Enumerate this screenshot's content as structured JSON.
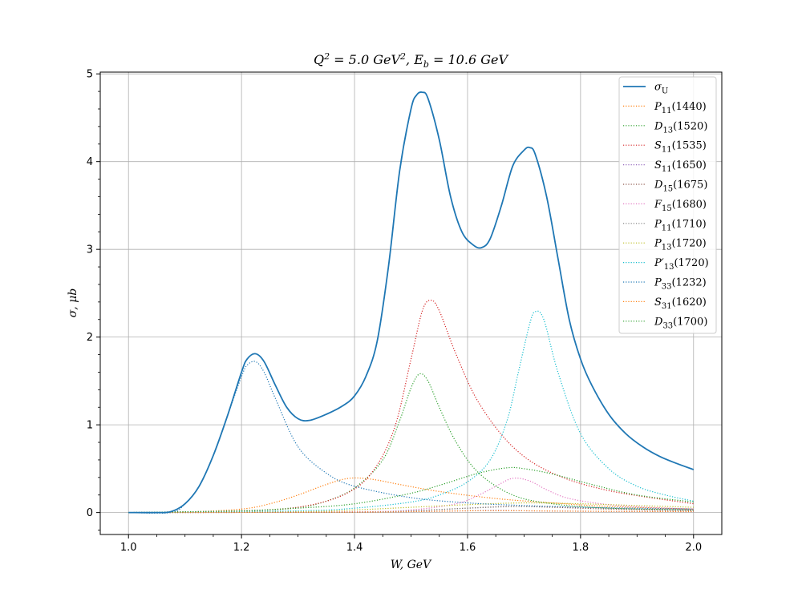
{
  "chart_data": {
    "type": "line",
    "title": "Q² = 5.0 GeV², E_b = 10.6 GeV",
    "title_parts": {
      "q": "Q",
      "q_sup": "2",
      "q_value": " = 5.0 GeV",
      "gev_sup": "2",
      "sep": ",  ",
      "eb": "E",
      "eb_sub": "b",
      "eb_value": " = 10.6 GeV"
    },
    "xlabel": "W, GeV",
    "ylabel": "σ, μb",
    "xlim": [
      0.95,
      2.05
    ],
    "ylim": [
      -0.25,
      5.02
    ],
    "x_ticks": [
      1.0,
      1.2,
      1.4,
      1.6,
      1.8,
      2.0
    ],
    "x_tick_labels": [
      "1.0",
      "1.2",
      "1.4",
      "1.6",
      "1.8",
      "2.0"
    ],
    "y_ticks": [
      0,
      1,
      2,
      3,
      4,
      5
    ],
    "y_tick_labels": [
      "0",
      "1",
      "2",
      "3",
      "4",
      "5"
    ],
    "grid": true,
    "legend_position": "top-right",
    "series": [
      {
        "name": "σ_U",
        "label_main": "σ",
        "label_sub": "U",
        "label_tail": "",
        "color": "#1f77b4",
        "style": "solid",
        "x": [
          1.0,
          1.05,
          1.075,
          1.1,
          1.125,
          1.15,
          1.175,
          1.2,
          1.21,
          1.225,
          1.24,
          1.26,
          1.28,
          1.3,
          1.32,
          1.35,
          1.38,
          1.4,
          1.42,
          1.44,
          1.46,
          1.48,
          1.5,
          1.51,
          1.52,
          1.53,
          1.55,
          1.57,
          1.59,
          1.61,
          1.625,
          1.64,
          1.66,
          1.68,
          1.7,
          1.71,
          1.72,
          1.74,
          1.76,
          1.78,
          1.8,
          1.82,
          1.85,
          1.88,
          1.91,
          1.94,
          1.97,
          2.0
        ],
        "y": [
          0.0,
          0.0,
          0.01,
          0.1,
          0.3,
          0.65,
          1.1,
          1.6,
          1.75,
          1.81,
          1.72,
          1.45,
          1.2,
          1.07,
          1.05,
          1.12,
          1.22,
          1.33,
          1.55,
          1.95,
          2.8,
          3.9,
          4.6,
          4.76,
          4.79,
          4.72,
          4.25,
          3.6,
          3.2,
          3.05,
          3.02,
          3.12,
          3.5,
          3.95,
          4.13,
          4.16,
          4.08,
          3.6,
          2.9,
          2.2,
          1.75,
          1.45,
          1.12,
          0.9,
          0.75,
          0.64,
          0.56,
          0.49
        ]
      },
      {
        "name": "P_11(1440)",
        "label_main": "P",
        "label_sub": "11",
        "label_tail": "(1440)",
        "color": "#ff7f0e",
        "style": "dotted",
        "x": [
          1.0,
          1.1,
          1.2,
          1.25,
          1.3,
          1.35,
          1.39,
          1.43,
          1.48,
          1.55,
          1.65,
          1.75,
          1.85,
          2.0
        ],
        "y": [
          0.0,
          0.005,
          0.04,
          0.1,
          0.2,
          0.32,
          0.39,
          0.38,
          0.32,
          0.24,
          0.16,
          0.11,
          0.07,
          0.04
        ]
      },
      {
        "name": "D_13(1520)",
        "label_main": "D",
        "label_sub": "13",
        "label_tail": "(1520)",
        "color": "#2ca02c",
        "style": "dotted",
        "x": [
          1.0,
          1.2,
          1.3,
          1.35,
          1.4,
          1.45,
          1.48,
          1.5,
          1.515,
          1.53,
          1.55,
          1.58,
          1.62,
          1.68,
          1.75,
          1.85,
          2.0
        ],
        "y": [
          0.0,
          0.02,
          0.06,
          0.13,
          0.28,
          0.6,
          1.05,
          1.42,
          1.58,
          1.5,
          1.2,
          0.8,
          0.45,
          0.2,
          0.1,
          0.05,
          0.03
        ]
      },
      {
        "name": "S_11(1535)",
        "label_main": "S",
        "label_sub": "11",
        "label_tail": "(1535)",
        "color": "#d62728",
        "style": "dotted",
        "x": [
          1.0,
          1.2,
          1.3,
          1.38,
          1.43,
          1.47,
          1.5,
          1.52,
          1.535,
          1.55,
          1.58,
          1.62,
          1.68,
          1.75,
          1.85,
          2.0
        ],
        "y": [
          0.0,
          0.02,
          0.06,
          0.2,
          0.45,
          0.95,
          1.75,
          2.3,
          2.42,
          2.3,
          1.8,
          1.25,
          0.75,
          0.45,
          0.25,
          0.1
        ]
      },
      {
        "name": "S_11(1650)",
        "label_main": "S",
        "label_sub": "11",
        "label_tail": "(1650)",
        "color": "#9467bd",
        "style": "dotted",
        "x": [
          1.0,
          1.4,
          1.5,
          1.6,
          1.65,
          1.7,
          1.8,
          2.0
        ],
        "y": [
          0.0,
          0.005,
          0.01,
          0.02,
          0.025,
          0.02,
          0.015,
          0.01
        ]
      },
      {
        "name": "D_15(1675)",
        "label_main": "D",
        "label_sub": "15",
        "label_tail": "(1675)",
        "color": "#8c564b",
        "style": "dotted",
        "x": [
          1.0,
          1.4,
          1.5,
          1.6,
          1.675,
          1.75,
          1.85,
          2.0
        ],
        "y": [
          0.0,
          0.005,
          0.02,
          0.05,
          0.07,
          0.06,
          0.04,
          0.02
        ]
      },
      {
        "name": "F_15(1680)",
        "label_main": "F",
        "label_sub": "15",
        "label_tail": "(1680)",
        "color": "#e377c2",
        "style": "dotted",
        "x": [
          1.0,
          1.4,
          1.5,
          1.58,
          1.62,
          1.65,
          1.68,
          1.71,
          1.74,
          1.78,
          1.85,
          1.92,
          2.0
        ],
        "y": [
          0.0,
          0.01,
          0.03,
          0.1,
          0.2,
          0.3,
          0.39,
          0.36,
          0.26,
          0.16,
          0.09,
          0.06,
          0.04
        ]
      },
      {
        "name": "P_11(1710)",
        "label_main": "P",
        "label_sub": "11",
        "label_tail": "(1710)",
        "color": "#7f7f7f",
        "style": "dotted",
        "x": [
          1.0,
          1.4,
          1.5,
          1.6,
          1.7,
          1.8,
          1.9,
          2.0
        ],
        "y": [
          0.0,
          0.005,
          0.02,
          0.05,
          0.07,
          0.06,
          0.04,
          0.03
        ]
      },
      {
        "name": "P_13(1720)",
        "label_main": "P",
        "label_sub": "13",
        "label_tail": "(1720)",
        "color": "#bcbd22",
        "style": "dotted",
        "x": [
          1.0,
          1.3,
          1.4,
          1.5,
          1.6,
          1.7,
          1.8,
          1.9,
          2.0
        ],
        "y": [
          0.0,
          0.01,
          0.03,
          0.06,
          0.09,
          0.11,
          0.1,
          0.08,
          0.06
        ]
      },
      {
        "name": "P'_13(1720)",
        "label_main": "P′",
        "label_sub": "13",
        "label_tail": "(1720)",
        "color": "#17becf",
        "style": "dotted",
        "x": [
          1.0,
          1.3,
          1.4,
          1.5,
          1.55,
          1.6,
          1.64,
          1.67,
          1.69,
          1.71,
          1.72,
          1.735,
          1.76,
          1.8,
          1.85,
          1.9,
          1.95,
          2.0
        ],
        "y": [
          0.0,
          0.02,
          0.05,
          0.12,
          0.2,
          0.35,
          0.6,
          1.05,
          1.6,
          2.15,
          2.29,
          2.2,
          1.6,
          0.9,
          0.5,
          0.3,
          0.2,
          0.13
        ]
      },
      {
        "name": "P_33(1232)",
        "label_main": "P",
        "label_sub": "33",
        "label_tail": "(1232)",
        "color": "#1f77b4",
        "style": "dotted",
        "x": [
          1.0,
          1.075,
          1.1,
          1.125,
          1.15,
          1.175,
          1.2,
          1.21,
          1.225,
          1.24,
          1.26,
          1.3,
          1.35,
          1.4,
          1.5,
          1.6,
          1.7,
          1.8,
          1.9,
          2.0
        ],
        "y": [
          0.0,
          0.0,
          0.1,
          0.3,
          0.65,
          1.1,
          1.55,
          1.68,
          1.72,
          1.6,
          1.3,
          0.75,
          0.45,
          0.3,
          0.17,
          0.11,
          0.08,
          0.06,
          0.05,
          0.04
        ]
      },
      {
        "name": "S_31(1620)",
        "label_main": "S",
        "label_sub": "31",
        "label_tail": "(1620)",
        "color": "#ff7f0e",
        "style": "dotted",
        "x": [
          1.0,
          1.4,
          1.5,
          1.6,
          1.62,
          1.7,
          1.8,
          2.0
        ],
        "y": [
          0.0,
          0.005,
          0.01,
          0.02,
          0.02,
          0.02,
          0.015,
          0.01
        ]
      },
      {
        "name": "D_33(1700)",
        "label_main": "D",
        "label_sub": "33",
        "label_tail": "(1700)",
        "color": "#2ca02c",
        "style": "dotted",
        "x": [
          1.0,
          1.2,
          1.3,
          1.4,
          1.5,
          1.56,
          1.62,
          1.67,
          1.7,
          1.75,
          1.82,
          1.9,
          2.0
        ],
        "y": [
          0.0,
          0.02,
          0.05,
          0.1,
          0.22,
          0.33,
          0.45,
          0.51,
          0.5,
          0.44,
          0.32,
          0.2,
          0.12
        ]
      }
    ]
  }
}
